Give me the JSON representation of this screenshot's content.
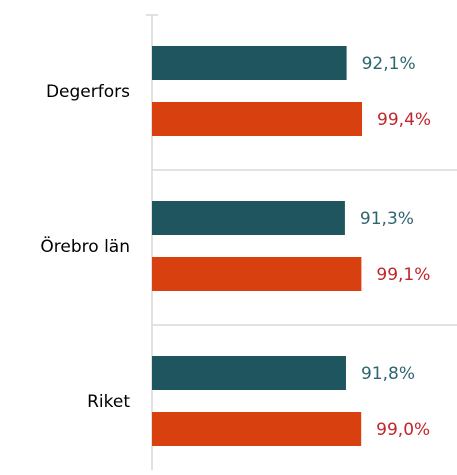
{
  "chart_data": {
    "type": "barh",
    "categories": [
      "Degerfors",
      "Örebro län",
      "Riket"
    ],
    "series": [
      {
        "color": "#1f555e",
        "label_color": "#2e6670",
        "values": [
          92.1,
          91.3,
          91.8
        ],
        "value_labels": [
          "92,1%",
          "91,3%",
          "91,8%"
        ]
      },
      {
        "color": "#d9400f",
        "label_color": "#c0262b",
        "values": [
          99.4,
          99.1,
          99.0
        ],
        "value_labels": [
          "99,4%",
          "99,1%",
          "99,0%"
        ]
      }
    ],
    "xlim": [
      0,
      100
    ]
  }
}
